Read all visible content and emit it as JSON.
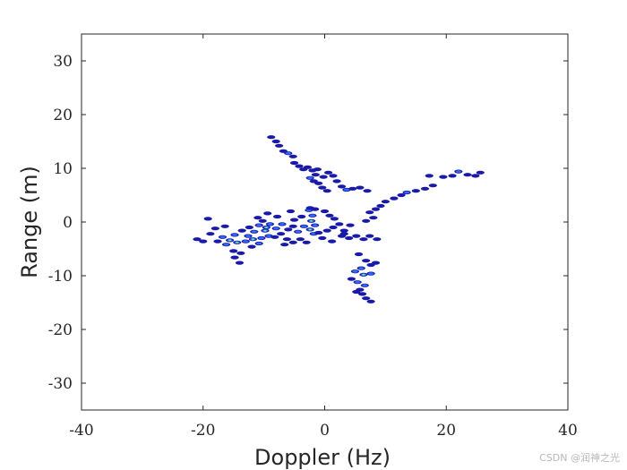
{
  "chart_data": {
    "type": "scatter",
    "xlabel": "Doppler (Hz)",
    "ylabel": "Range (m)",
    "xlim": [
      -40,
      40
    ],
    "ylim": [
      -35,
      35
    ],
    "xticks": [
      -40,
      -20,
      0,
      20,
      40
    ],
    "yticks": [
      -30,
      -20,
      -10,
      0,
      10,
      20,
      30
    ],
    "xtick_labels": [
      "-40",
      "-20",
      "0",
      "20",
      "40"
    ],
    "ytick_labels": [
      "-30",
      "-20",
      "-10",
      "0",
      "10",
      "20",
      "30"
    ],
    "grid": false,
    "colors": {
      "outer": "#1a1aa8",
      "mid": "#2f6bff",
      "inner": "#27c6c6",
      "core": "#f2e440"
    },
    "points": [
      {
        "x": -8.8,
        "y": 15.8,
        "level": 1
      },
      {
        "x": -8.0,
        "y": 15.0,
        "level": 1
      },
      {
        "x": -7.5,
        "y": 14.2,
        "level": 1
      },
      {
        "x": -6.8,
        "y": 13.2,
        "level": 1
      },
      {
        "x": -6.0,
        "y": 12.8,
        "level": 2
      },
      {
        "x": -5.2,
        "y": 12.2,
        "level": 1
      },
      {
        "x": -5.0,
        "y": 11.0,
        "level": 1
      },
      {
        "x": -4.2,
        "y": 10.4,
        "level": 1
      },
      {
        "x": -3.5,
        "y": 9.8,
        "level": 1
      },
      {
        "x": -2.8,
        "y": 10.2,
        "level": 1
      },
      {
        "x": -2.0,
        "y": 9.6,
        "level": 1
      },
      {
        "x": -1.2,
        "y": 9.8,
        "level": 1
      },
      {
        "x": -1.5,
        "y": 8.8,
        "level": 1
      },
      {
        "x": -2.4,
        "y": 8.2,
        "level": 2
      },
      {
        "x": -1.8,
        "y": 7.6,
        "level": 1
      },
      {
        "x": -1.0,
        "y": 7.2,
        "level": 1
      },
      {
        "x": -0.2,
        "y": 8.4,
        "level": 1
      },
      {
        "x": 0.6,
        "y": 9.2,
        "level": 1
      },
      {
        "x": 1.4,
        "y": 8.6,
        "level": 1
      },
      {
        "x": 2.0,
        "y": 7.6,
        "level": 1
      },
      {
        "x": 2.8,
        "y": 6.6,
        "level": 1
      },
      {
        "x": 3.6,
        "y": 6.0,
        "level": 2
      },
      {
        "x": 4.6,
        "y": 6.2,
        "level": 1
      },
      {
        "x": 5.8,
        "y": 6.4,
        "level": 1
      },
      {
        "x": 7.0,
        "y": 5.8,
        "level": 1
      },
      {
        "x": -0.4,
        "y": 6.4,
        "level": 1
      },
      {
        "x": 0.4,
        "y": 5.8,
        "level": 1
      },
      {
        "x": 13.5,
        "y": 5.5,
        "level": 2
      },
      {
        "x": 12.6,
        "y": 5.0,
        "level": 1
      },
      {
        "x": 15.0,
        "y": 5.8,
        "level": 1
      },
      {
        "x": 16.5,
        "y": 6.2,
        "level": 1
      },
      {
        "x": 17.8,
        "y": 6.8,
        "level": 1
      },
      {
        "x": 11.4,
        "y": 4.4,
        "level": 1
      },
      {
        "x": 10.0,
        "y": 3.8,
        "level": 1
      },
      {
        "x": 9.2,
        "y": 3.0,
        "level": 1
      },
      {
        "x": 8.4,
        "y": 2.4,
        "level": 1
      },
      {
        "x": 7.4,
        "y": 1.8,
        "level": 1
      },
      {
        "x": 8.0,
        "y": 0.8,
        "level": 1
      },
      {
        "x": 6.8,
        "y": 0.2,
        "level": 1
      },
      {
        "x": 17.2,
        "y": 8.6,
        "level": 1
      },
      {
        "x": 19.5,
        "y": 8.4,
        "level": 1
      },
      {
        "x": 21.0,
        "y": 8.6,
        "level": 1
      },
      {
        "x": 22.0,
        "y": 9.4,
        "level": 2
      },
      {
        "x": 23.5,
        "y": 8.8,
        "level": 1
      },
      {
        "x": 24.8,
        "y": 8.6,
        "level": 1
      },
      {
        "x": 25.6,
        "y": 9.2,
        "level": 1
      },
      {
        "x": -2.6,
        "y": 2.2,
        "level": 2
      },
      {
        "x": -2.0,
        "y": 1.2,
        "level": 2
      },
      {
        "x": -2.2,
        "y": 0.2,
        "level": 3
      },
      {
        "x": -1.6,
        "y": -0.6,
        "level": 2
      },
      {
        "x": -2.4,
        "y": -1.4,
        "level": 3
      },
      {
        "x": -1.8,
        "y": -2.2,
        "level": 2
      },
      {
        "x": -3.4,
        "y": -0.8,
        "level": 2
      },
      {
        "x": -4.4,
        "y": -1.8,
        "level": 2
      },
      {
        "x": -5.2,
        "y": -0.8,
        "level": 1
      },
      {
        "x": -1.0,
        "y": -2.0,
        "level": 1
      },
      {
        "x": -0.4,
        "y": -3.0,
        "level": 1
      },
      {
        "x": 0.4,
        "y": -1.6,
        "level": 1
      },
      {
        "x": 1.4,
        "y": -1.0,
        "level": 1
      },
      {
        "x": 2.4,
        "y": -0.4,
        "level": 1
      },
      {
        "x": 3.2,
        "y": -1.6,
        "level": 1
      },
      {
        "x": 4.2,
        "y": -0.6,
        "level": 1
      },
      {
        "x": 2.8,
        "y": -2.6,
        "level": 1
      },
      {
        "x": 1.2,
        "y": -3.6,
        "level": 1
      },
      {
        "x": 1.6,
        "y": 0.6,
        "level": 1
      },
      {
        "x": 0.8,
        "y": 1.2,
        "level": 1
      },
      {
        "x": -6.0,
        "y": -1.4,
        "level": 1
      },
      {
        "x": -7.0,
        "y": -0.4,
        "level": 2
      },
      {
        "x": -8.0,
        "y": -1.2,
        "level": 2
      },
      {
        "x": -9.0,
        "y": -0.4,
        "level": 2
      },
      {
        "x": -9.8,
        "y": -1.6,
        "level": 3
      },
      {
        "x": -10.8,
        "y": -0.6,
        "level": 2
      },
      {
        "x": -11.6,
        "y": -1.8,
        "level": 2
      },
      {
        "x": -12.6,
        "y": -2.6,
        "level": 2
      },
      {
        "x": -13.6,
        "y": -1.6,
        "level": 1
      },
      {
        "x": -14.8,
        "y": -2.4,
        "level": 2
      },
      {
        "x": -15.6,
        "y": -3.4,
        "level": 3
      },
      {
        "x": -16.8,
        "y": -2.8,
        "level": 2
      },
      {
        "x": -17.6,
        "y": -3.6,
        "level": 1
      },
      {
        "x": -16.2,
        "y": -4.2,
        "level": 2
      },
      {
        "x": -14.4,
        "y": -3.8,
        "level": 3
      },
      {
        "x": -13.0,
        "y": -3.6,
        "level": 2
      },
      {
        "x": -11.8,
        "y": -3.2,
        "level": 3
      },
      {
        "x": -10.4,
        "y": -3.0,
        "level": 2
      },
      {
        "x": -9.2,
        "y": -2.6,
        "level": 2
      },
      {
        "x": -8.2,
        "y": -2.8,
        "level": 1
      },
      {
        "x": -7.2,
        "y": -2.2,
        "level": 1
      },
      {
        "x": -6.2,
        "y": -3.2,
        "level": 1
      },
      {
        "x": -5.2,
        "y": -3.8,
        "level": 1
      },
      {
        "x": -4.0,
        "y": -3.2,
        "level": 1
      },
      {
        "x": -3.0,
        "y": -3.8,
        "level": 1
      },
      {
        "x": -12.0,
        "y": -4.6,
        "level": 1
      },
      {
        "x": -10.8,
        "y": -4.0,
        "level": 2
      },
      {
        "x": -9.6,
        "y": -1.0,
        "level": 3
      },
      {
        "x": -10.2,
        "y": 0.2,
        "level": 1
      },
      {
        "x": -11.0,
        "y": 0.8,
        "level": 1
      },
      {
        "x": -16.4,
        "y": -0.8,
        "level": 1
      },
      {
        "x": -18.0,
        "y": -1.2,
        "level": 1
      },
      {
        "x": -19.2,
        "y": 0.6,
        "level": 1
      },
      {
        "x": -21.0,
        "y": -3.2,
        "level": 1
      },
      {
        "x": -20.0,
        "y": -3.6,
        "level": 1
      },
      {
        "x": -15.0,
        "y": -5.4,
        "level": 1
      },
      {
        "x": -14.8,
        "y": -6.6,
        "level": 1
      },
      {
        "x": -14.0,
        "y": -7.6,
        "level": 1
      },
      {
        "x": -13.8,
        "y": -5.8,
        "level": 1
      },
      {
        "x": -7.8,
        "y": 1.0,
        "level": 1
      },
      {
        "x": -5.0,
        "y": 0.4,
        "level": 1
      },
      {
        "x": -3.8,
        "y": 1.0,
        "level": 1
      },
      {
        "x": -6.6,
        "y": -4.2,
        "level": 1
      },
      {
        "x": -9.4,
        "y": 1.6,
        "level": 1
      },
      {
        "x": 3.2,
        "y": -2.2,
        "level": 1
      },
      {
        "x": 4.0,
        "y": -3.0,
        "level": 1
      },
      {
        "x": 5.2,
        "y": -2.6,
        "level": 1
      },
      {
        "x": 6.4,
        "y": -3.2,
        "level": 1
      },
      {
        "x": 7.4,
        "y": -2.6,
        "level": 1
      },
      {
        "x": 8.6,
        "y": -3.2,
        "level": 1
      },
      {
        "x": 5.6,
        "y": -6.0,
        "level": 1
      },
      {
        "x": 6.8,
        "y": -7.2,
        "level": 1
      },
      {
        "x": 7.6,
        "y": -8.0,
        "level": 1
      },
      {
        "x": 8.4,
        "y": -7.6,
        "level": 1
      },
      {
        "x": 6.0,
        "y": -8.6,
        "level": 2
      },
      {
        "x": 5.0,
        "y": -9.2,
        "level": 2
      },
      {
        "x": 6.4,
        "y": -9.8,
        "level": 3
      },
      {
        "x": 7.6,
        "y": -9.6,
        "level": 2
      },
      {
        "x": 4.4,
        "y": -10.6,
        "level": 1
      },
      {
        "x": 5.4,
        "y": -11.2,
        "level": 2
      },
      {
        "x": 6.6,
        "y": -11.8,
        "level": 2
      },
      {
        "x": 5.8,
        "y": -12.6,
        "level": 1
      },
      {
        "x": 6.2,
        "y": -13.4,
        "level": 1
      },
      {
        "x": 6.8,
        "y": -14.2,
        "level": 1
      },
      {
        "x": 7.6,
        "y": -14.8,
        "level": 1
      },
      {
        "x": 5.2,
        "y": -13.0,
        "level": 1
      },
      {
        "x": -2.4,
        "y": 2.6,
        "level": 1
      },
      {
        "x": -1.6,
        "y": 2.4,
        "level": 1
      },
      {
        "x": 0.0,
        "y": 2.0,
        "level": 1
      },
      {
        "x": -5.6,
        "y": 2.0,
        "level": 1
      },
      {
        "x": -18.8,
        "y": -2.2,
        "level": 1
      },
      {
        "x": -12.4,
        "y": -1.0,
        "level": 1
      }
    ]
  },
  "watermark": "CSDN @润神之光"
}
